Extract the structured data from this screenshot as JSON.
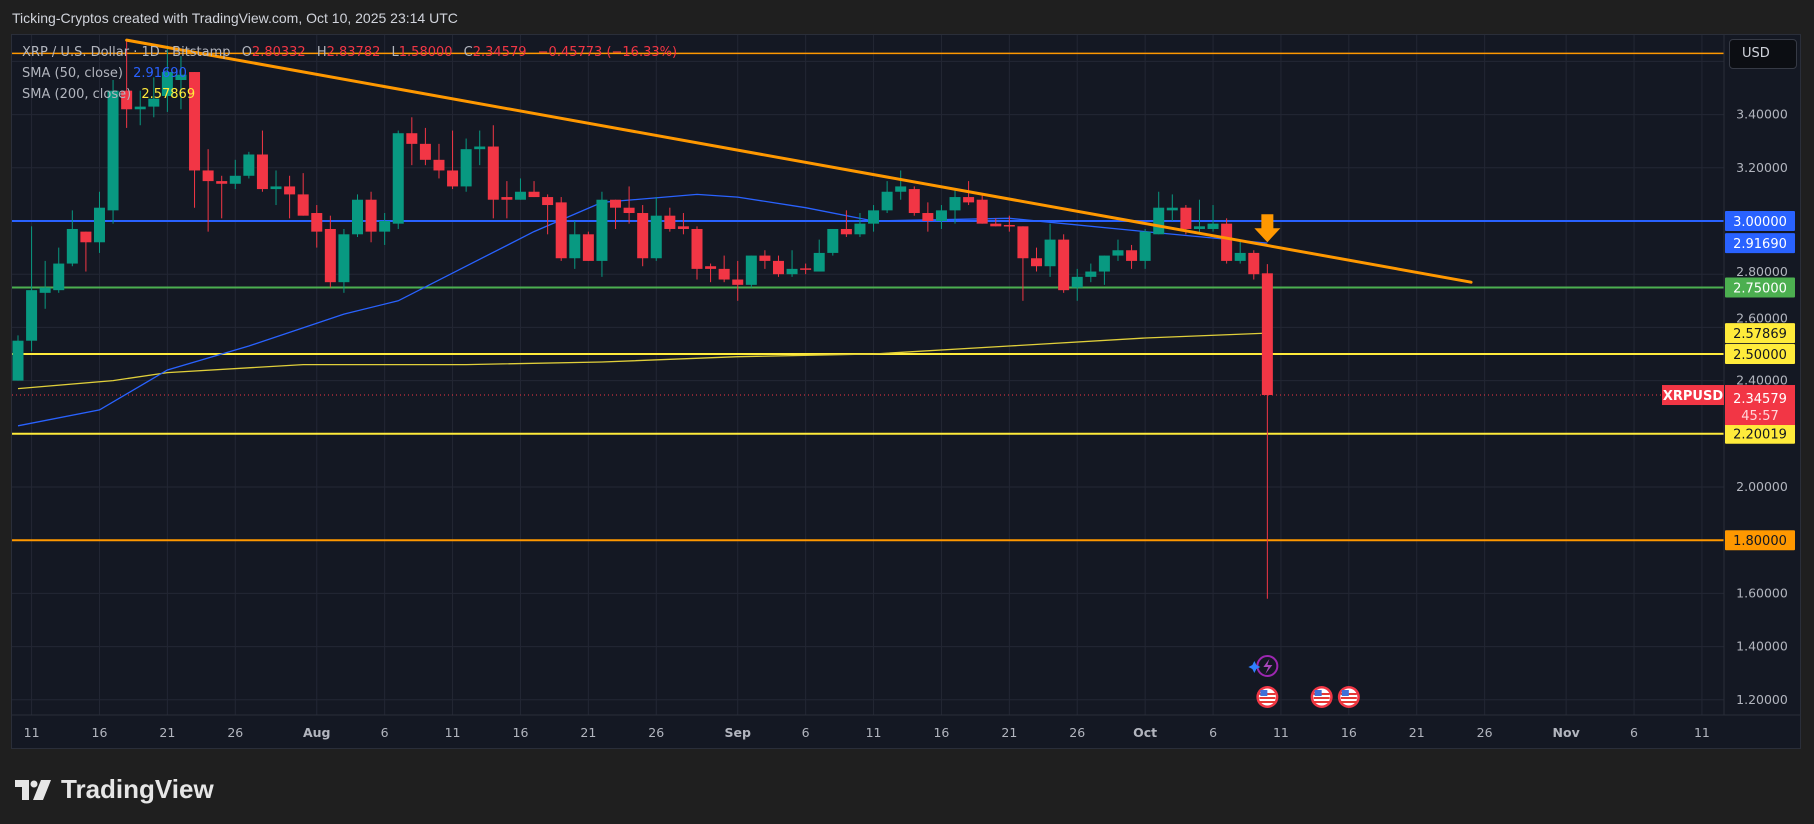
{
  "header": {
    "title": "Ticking-Cryptos created with TradingView.com, Oct 10, 2025 23:14 UTC"
  },
  "legend": {
    "symbol": "XRP / U.S. Dollar · 1D · Bitstamp",
    "open_label": "O",
    "open": "2.80332",
    "high_label": "H",
    "high": "2.83782",
    "low_label": "L",
    "low": "1.58000",
    "close_label": "C",
    "close": "2.34579",
    "change": "−0.45773 (−16.33%)",
    "sma50_label": "SMA (50, close)",
    "sma50_value": "2.91690",
    "sma200_label": "SMA (200, close)",
    "sma200_value": "2.57869"
  },
  "price_axis": {
    "currency": "USD",
    "ticks": [
      "3.40000",
      "3.20000",
      "2.80000",
      "2.60000",
      "2.40000",
      "2.00000",
      "1.60000",
      "1.40000",
      "1.20000"
    ],
    "tick_values": [
      3.4,
      3.2,
      2.8,
      2.6,
      2.4,
      2.0,
      1.6,
      1.4,
      1.2
    ],
    "grid_values": [
      3.6,
      3.4,
      3.2,
      3.0,
      2.8,
      2.6,
      2.4,
      2.2,
      2.0,
      1.8,
      1.6,
      1.4,
      1.2
    ]
  },
  "time_axis": {
    "ticks": [
      {
        "label": "11",
        "date": "2025-07-11"
      },
      {
        "label": "16",
        "date": "2025-07-16"
      },
      {
        "label": "21",
        "date": "2025-07-21"
      },
      {
        "label": "26",
        "date": "2025-07-26"
      },
      {
        "label": "Aug",
        "date": "2025-08-01"
      },
      {
        "label": "6",
        "date": "2025-08-06"
      },
      {
        "label": "11",
        "date": "2025-08-11"
      },
      {
        "label": "16",
        "date": "2025-08-16"
      },
      {
        "label": "21",
        "date": "2025-08-21"
      },
      {
        "label": "26",
        "date": "2025-08-26"
      },
      {
        "label": "Sep",
        "date": "2025-09-01"
      },
      {
        "label": "6",
        "date": "2025-09-06"
      },
      {
        "label": "11",
        "date": "2025-09-11"
      },
      {
        "label": "16",
        "date": "2025-09-16"
      },
      {
        "label": "21",
        "date": "2025-09-21"
      },
      {
        "label": "26",
        "date": "2025-09-26"
      },
      {
        "label": "Oct",
        "date": "2025-10-01"
      },
      {
        "label": "6",
        "date": "2025-10-06"
      },
      {
        "label": "11",
        "date": "2025-10-11"
      },
      {
        "label": "16",
        "date": "2025-10-16"
      },
      {
        "label": "21",
        "date": "2025-10-21"
      },
      {
        "label": "26",
        "date": "2025-10-26"
      },
      {
        "label": "Nov",
        "date": "2025-11-01"
      },
      {
        "label": "6",
        "date": "2025-11-06"
      },
      {
        "label": "11",
        "date": "2025-11-11"
      }
    ]
  },
  "colors": {
    "up": "#089981",
    "down": "#f23645",
    "sma50": "#2962ff",
    "sma200": "#e0cf3a",
    "trendline": "#ff9800",
    "background": "#141823",
    "grid": "#232734"
  },
  "levels": [
    {
      "price": 3.63,
      "color": "#ff9800",
      "label": ""
    },
    {
      "price": 3.0,
      "color": "#2962ff",
      "label": "3.00000",
      "text_color": "#ffffff"
    },
    {
      "price": 2.75,
      "color": "#4caf50",
      "label": "2.75000",
      "text_color": "#ffffff"
    },
    {
      "price": 2.5,
      "color": "#ffeb3b",
      "label": "2.50000",
      "text_color": "#131722"
    },
    {
      "price": 2.20019,
      "color": "#ffeb3b",
      "label": "2.20019",
      "text_color": "#131722"
    },
    {
      "price": 1.8,
      "color": "#ff9800",
      "label": "1.80000",
      "text_color": "#131722"
    }
  ],
  "indicator_tags": [
    {
      "price": 2.9169,
      "color": "#2962ff",
      "label": "2.91690",
      "text_color": "#ffffff"
    },
    {
      "price": 2.57869,
      "color": "#ffeb3b",
      "label": "2.57869",
      "text_color": "#131722"
    }
  ],
  "last_price": {
    "symbol": "XRPUSD",
    "price": 2.34579,
    "label": "2.34579",
    "countdown": "45:57",
    "color": "#f23645"
  },
  "trendline": {
    "start": {
      "date": "2025-07-18",
      "price": 3.68
    },
    "end": {
      "date": "2025-10-25",
      "price": 2.77
    }
  },
  "signal_arrow": {
    "date": "2025-10-10",
    "price": 2.92,
    "icon": "down-arrow-icon",
    "color": "#ff9800"
  },
  "events": [
    {
      "date": "2025-10-10",
      "icon": "lightning-icon",
      "row": 1
    },
    {
      "date": "2025-10-10",
      "icon": "us-flag-icon",
      "row": 2
    },
    {
      "date": "2025-10-14",
      "icon": "us-flag-icon",
      "row": 2
    },
    {
      "date": "2025-10-16",
      "icon": "us-flag-icon",
      "row": 2
    }
  ],
  "chart_data": {
    "type": "candlestick",
    "symbol": "XRP / U.S. Dollar",
    "interval": "1D",
    "exchange": "Bitstamp",
    "ylim": [
      1.15,
      3.7
    ],
    "grid": true,
    "candles_format": [
      "date",
      "open",
      "high",
      "low",
      "close"
    ],
    "candles": [
      [
        "2025-07-10",
        2.4,
        2.57,
        2.4,
        2.55
      ],
      [
        "2025-07-11",
        2.55,
        2.98,
        2.51,
        2.74
      ],
      [
        "2025-07-12",
        2.73,
        2.85,
        2.67,
        2.75
      ],
      [
        "2025-07-13",
        2.74,
        2.9,
        2.73,
        2.84
      ],
      [
        "2025-07-14",
        2.84,
        3.04,
        2.83,
        2.97
      ],
      [
        "2025-07-15",
        2.96,
        2.96,
        2.81,
        2.92
      ],
      [
        "2025-07-16",
        2.92,
        3.11,
        2.88,
        3.05
      ],
      [
        "2025-07-17",
        3.04,
        3.53,
        2.99,
        3.49
      ],
      [
        "2025-07-18",
        3.49,
        3.68,
        3.35,
        3.42
      ],
      [
        "2025-07-19",
        3.42,
        3.49,
        3.36,
        3.43
      ],
      [
        "2025-07-20",
        3.43,
        3.54,
        3.39,
        3.46
      ],
      [
        "2025-07-21",
        3.47,
        3.66,
        3.41,
        3.56
      ],
      [
        "2025-07-22",
        3.53,
        3.62,
        3.42,
        3.55
      ],
      [
        "2025-07-23",
        3.56,
        3.56,
        3.05,
        3.19
      ],
      [
        "2025-07-24",
        3.19,
        3.27,
        2.96,
        3.15
      ],
      [
        "2025-07-25",
        3.15,
        3.17,
        3.01,
        3.14
      ],
      [
        "2025-07-26",
        3.14,
        3.23,
        3.12,
        3.17
      ],
      [
        "2025-07-27",
        3.17,
        3.26,
        3.16,
        3.25
      ],
      [
        "2025-07-28",
        3.25,
        3.34,
        3.11,
        3.12
      ],
      [
        "2025-07-29",
        3.12,
        3.19,
        3.06,
        3.13
      ],
      [
        "2025-07-30",
        3.13,
        3.17,
        3.01,
        3.1
      ],
      [
        "2025-07-31",
        3.1,
        3.18,
        3.02,
        3.02
      ],
      [
        "2025-08-01",
        3.03,
        3.06,
        2.9,
        2.96
      ],
      [
        "2025-08-02",
        2.97,
        3.02,
        2.75,
        2.77
      ],
      [
        "2025-08-03",
        2.77,
        2.97,
        2.73,
        2.95
      ],
      [
        "2025-08-04",
        2.95,
        3.1,
        2.94,
        3.08
      ],
      [
        "2025-08-05",
        3.08,
        3.11,
        2.92,
        2.96
      ],
      [
        "2025-08-06",
        2.96,
        3.03,
        2.91,
        3.0
      ],
      [
        "2025-08-07",
        2.99,
        3.34,
        2.97,
        3.33
      ],
      [
        "2025-08-08",
        3.33,
        3.39,
        3.21,
        3.29
      ],
      [
        "2025-08-09",
        3.29,
        3.35,
        3.21,
        3.23
      ],
      [
        "2025-08-10",
        3.23,
        3.29,
        3.16,
        3.19
      ],
      [
        "2025-08-11",
        3.19,
        3.34,
        3.12,
        3.13
      ],
      [
        "2025-08-12",
        3.13,
        3.31,
        3.11,
        3.27
      ],
      [
        "2025-08-13",
        3.27,
        3.34,
        3.21,
        3.28
      ],
      [
        "2025-08-14",
        3.28,
        3.36,
        3.01,
        3.08
      ],
      [
        "2025-08-15",
        3.09,
        3.15,
        3.01,
        3.08
      ],
      [
        "2025-08-16",
        3.08,
        3.16,
        3.08,
        3.11
      ],
      [
        "2025-08-17",
        3.11,
        3.15,
        3.09,
        3.09
      ],
      [
        "2025-08-18",
        3.09,
        3.1,
        2.95,
        3.06
      ],
      [
        "2025-08-19",
        3.07,
        3.09,
        2.85,
        2.86
      ],
      [
        "2025-08-20",
        2.86,
        3.0,
        2.82,
        2.95
      ],
      [
        "2025-08-21",
        2.95,
        2.96,
        2.85,
        2.85
      ],
      [
        "2025-08-22",
        2.85,
        3.11,
        2.79,
        3.08
      ],
      [
        "2025-08-23",
        3.08,
        3.08,
        2.97,
        3.05
      ],
      [
        "2025-08-24",
        3.05,
        3.13,
        2.99,
        3.03
      ],
      [
        "2025-08-25",
        3.03,
        3.06,
        2.83,
        2.86
      ],
      [
        "2025-08-26",
        2.86,
        3.09,
        2.85,
        3.02
      ],
      [
        "2025-08-27",
        3.02,
        3.05,
        2.96,
        2.97
      ],
      [
        "2025-08-28",
        2.98,
        3.03,
        2.95,
        2.97
      ],
      [
        "2025-08-29",
        2.97,
        2.98,
        2.78,
        2.82
      ],
      [
        "2025-08-30",
        2.83,
        2.84,
        2.77,
        2.82
      ],
      [
        "2025-08-31",
        2.82,
        2.87,
        2.77,
        2.78
      ],
      [
        "2025-09-01",
        2.78,
        2.85,
        2.7,
        2.76
      ],
      [
        "2025-09-02",
        2.76,
        2.87,
        2.75,
        2.87
      ],
      [
        "2025-09-03",
        2.87,
        2.89,
        2.82,
        2.85
      ],
      [
        "2025-09-04",
        2.85,
        2.87,
        2.79,
        2.8
      ],
      [
        "2025-09-05",
        2.8,
        2.89,
        2.79,
        2.82
      ],
      [
        "2025-09-06",
        2.822,
        2.84,
        2.8,
        2.818
      ],
      [
        "2025-09-07",
        2.81,
        2.93,
        2.81,
        2.88
      ],
      [
        "2025-09-08",
        2.88,
        2.97,
        2.87,
        2.97
      ],
      [
        "2025-09-09",
        2.97,
        3.04,
        2.94,
        2.95
      ],
      [
        "2025-09-10",
        2.95,
        3.03,
        2.94,
        2.99
      ],
      [
        "2025-09-11",
        2.99,
        3.06,
        2.96,
        3.04
      ],
      [
        "2025-09-12",
        3.04,
        3.15,
        3.03,
        3.11
      ],
      [
        "2025-09-13",
        3.11,
        3.19,
        3.08,
        3.13
      ],
      [
        "2025-09-14",
        3.12,
        3.13,
        3.02,
        3.03
      ],
      [
        "2025-09-15",
        3.03,
        3.07,
        2.96,
        3.0
      ],
      [
        "2025-09-16",
        3.0,
        3.06,
        2.97,
        3.04
      ],
      [
        "2025-09-17",
        3.04,
        3.12,
        2.99,
        3.09
      ],
      [
        "2025-09-18",
        3.09,
        3.15,
        3.06,
        3.07
      ],
      [
        "2025-09-19",
        3.08,
        3.1,
        2.99,
        2.99
      ],
      [
        "2025-09-20",
        2.99,
        3.01,
        2.98,
        2.98
      ],
      [
        "2025-09-21",
        2.985,
        3.02,
        2.96,
        2.98
      ],
      [
        "2025-09-22",
        2.98,
        2.98,
        2.7,
        2.86
      ],
      [
        "2025-09-23",
        2.86,
        2.9,
        2.81,
        2.83
      ],
      [
        "2025-09-24",
        2.83,
        2.99,
        2.79,
        2.93
      ],
      [
        "2025-09-25",
        2.93,
        2.95,
        2.73,
        2.74
      ],
      [
        "2025-09-26",
        2.75,
        2.82,
        2.7,
        2.79
      ],
      [
        "2025-09-27",
        2.79,
        2.84,
        2.77,
        2.81
      ],
      [
        "2025-09-28",
        2.81,
        2.87,
        2.76,
        2.87
      ],
      [
        "2025-09-29",
        2.87,
        2.93,
        2.85,
        2.89
      ],
      [
        "2025-09-30",
        2.89,
        2.91,
        2.82,
        2.85
      ],
      [
        "2025-10-01",
        2.85,
        2.97,
        2.82,
        2.96
      ],
      [
        "2025-10-02",
        2.95,
        3.11,
        2.95,
        3.05
      ],
      [
        "2025-10-03",
        3.04,
        3.1,
        3.0,
        3.05
      ],
      [
        "2025-10-04",
        3.05,
        3.06,
        2.95,
        2.97
      ],
      [
        "2025-10-05",
        2.97,
        3.08,
        2.95,
        2.98
      ],
      [
        "2025-10-06",
        2.97,
        3.06,
        2.96,
        2.99
      ],
      [
        "2025-10-07",
        2.99,
        3.01,
        2.84,
        2.85
      ],
      [
        "2025-10-08",
        2.85,
        2.93,
        2.84,
        2.88
      ],
      [
        "2025-10-09",
        2.88,
        2.89,
        2.78,
        2.8
      ],
      [
        "2025-10-10",
        2.80332,
        2.83782,
        1.58,
        2.34579
      ]
    ],
    "sma50": [
      [
        "2025-07-10",
        2.23
      ],
      [
        "2025-07-16",
        2.29
      ],
      [
        "2025-07-21",
        2.44
      ],
      [
        "2025-07-27",
        2.53
      ],
      [
        "2025-08-03",
        2.65
      ],
      [
        "2025-08-07",
        2.7
      ],
      [
        "2025-08-12",
        2.83
      ],
      [
        "2025-08-17",
        2.96
      ],
      [
        "2025-08-22",
        3.07
      ],
      [
        "2025-08-29",
        3.1
      ],
      [
        "2025-09-01",
        3.09
      ],
      [
        "2025-09-06",
        3.05
      ],
      [
        "2025-09-11",
        3.0
      ],
      [
        "2025-09-21",
        3.01
      ],
      [
        "2025-10-01",
        2.96
      ],
      [
        "2025-10-10",
        2.9169
      ]
    ],
    "sma200": [
      [
        "2025-07-10",
        2.37
      ],
      [
        "2025-07-17",
        2.4
      ],
      [
        "2025-07-21",
        2.43
      ],
      [
        "2025-07-31",
        2.46
      ],
      [
        "2025-08-12",
        2.46
      ],
      [
        "2025-08-22",
        2.47
      ],
      [
        "2025-09-01",
        2.49
      ],
      [
        "2025-09-11",
        2.5
      ],
      [
        "2025-09-21",
        2.53
      ],
      [
        "2025-10-01",
        2.56
      ],
      [
        "2025-10-10",
        2.57869
      ]
    ]
  },
  "branding": {
    "logo_text": "TradingView"
  }
}
